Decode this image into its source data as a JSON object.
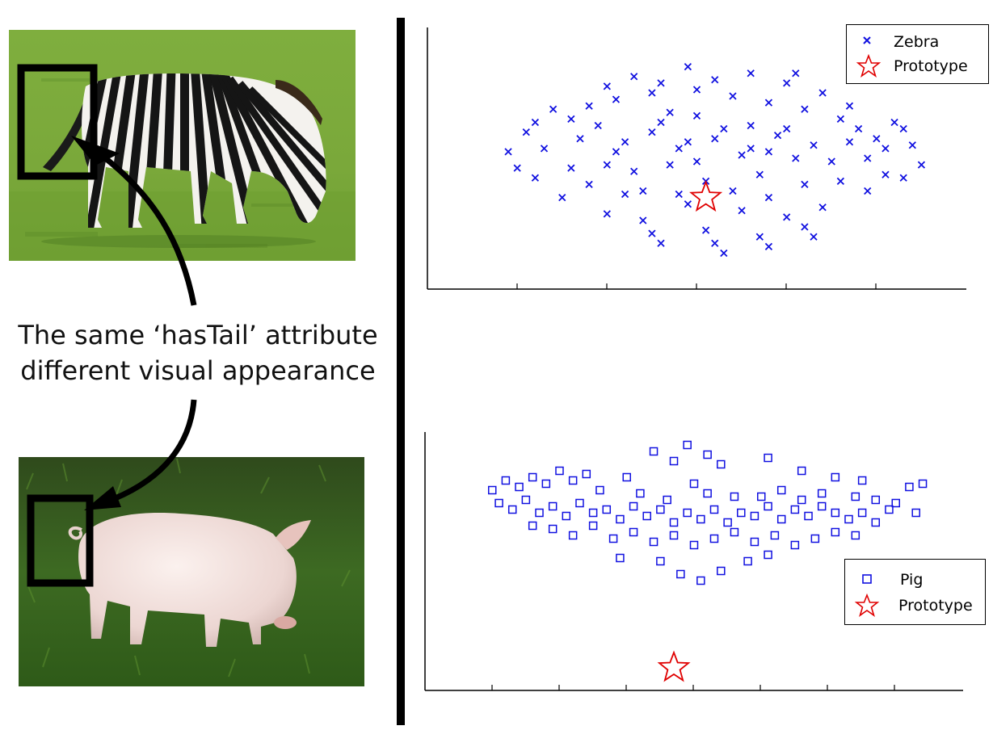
{
  "caption": {
    "line1": "The same ‘hasTail’ attribute",
    "line2": "different visual appearance"
  },
  "photos": {
    "top": "zebra-photo",
    "bottom": "pig-photo"
  },
  "chart_data": [
    {
      "type": "scatter",
      "title": "",
      "xlabel": "",
      "ylabel": "",
      "xlim": [
        -3.5,
        2.5
      ],
      "ylim": [
        -4,
        4
      ],
      "grid": false,
      "legend_position": "top-right",
      "legend": [
        "Zebra",
        "Prototype"
      ],
      "series": [
        {
          "name": "Zebra",
          "marker": "x",
          "color": "#1010e0",
          "points": [
            [
              -2.1,
              1.5
            ],
            [
              -1.9,
              1.2
            ],
            [
              -2.2,
              0.3
            ],
            [
              -1.5,
              2.2
            ],
            [
              -1.4,
              1.8
            ],
            [
              -1.2,
              2.5
            ],
            [
              -1.0,
              2.0
            ],
            [
              -0.8,
              1.4
            ],
            [
              -0.6,
              2.8
            ],
            [
              -0.5,
              2.1
            ],
            [
              -0.3,
              2.4
            ],
            [
              -0.1,
              1.9
            ],
            [
              0.1,
              2.6
            ],
            [
              0.3,
              1.7
            ],
            [
              0.5,
              2.3
            ],
            [
              0.7,
              1.5
            ],
            [
              0.9,
              2.0
            ],
            [
              1.1,
              1.2
            ],
            [
              1.3,
              0.9
            ],
            [
              1.5,
              0.6
            ],
            [
              1.7,
              1.1
            ],
            [
              1.9,
              0.4
            ],
            [
              2.0,
              -0.2
            ],
            [
              1.6,
              -0.5
            ],
            [
              1.4,
              -1.0
            ],
            [
              1.1,
              -0.7
            ],
            [
              0.9,
              -1.5
            ],
            [
              0.7,
              -2.1
            ],
            [
              0.5,
              -1.8
            ],
            [
              0.2,
              -2.4
            ],
            [
              0.0,
              -1.6
            ],
            [
              -0.2,
              -2.9
            ],
            [
              -0.4,
              -2.2
            ],
            [
              -0.6,
              -1.4
            ],
            [
              -0.9,
              -2.6
            ],
            [
              -1.1,
              -1.9
            ],
            [
              -1.3,
              -1.1
            ],
            [
              -1.5,
              -1.7
            ],
            [
              -1.7,
              -0.8
            ],
            [
              -1.9,
              -0.3
            ],
            [
              -2.4,
              0.8
            ],
            [
              -2.6,
              0.2
            ],
            [
              -2.3,
              -0.6
            ],
            [
              -2.0,
              -1.2
            ],
            [
              -1.8,
              0.6
            ],
            [
              -1.6,
              1.0
            ],
            [
              -1.4,
              0.2
            ],
            [
              -1.2,
              -0.4
            ],
            [
              -1.0,
              0.8
            ],
            [
              -0.8,
              -0.2
            ],
            [
              -0.6,
              0.5
            ],
            [
              -0.4,
              -0.7
            ],
            [
              -0.2,
              0.9
            ],
            [
              0.0,
              0.1
            ],
            [
              0.2,
              -0.5
            ],
            [
              0.4,
              0.7
            ],
            [
              0.6,
              0.0
            ],
            [
              0.8,
              0.4
            ],
            [
              1.0,
              -0.1
            ],
            [
              1.2,
              0.5
            ],
            [
              1.4,
              0.0
            ],
            [
              1.6,
              0.3
            ],
            [
              1.8,
              -0.6
            ],
            [
              -0.9,
              1.1
            ],
            [
              -0.7,
              0.3
            ],
            [
              -0.5,
              -0.1
            ],
            [
              -0.3,
              0.6
            ],
            [
              -0.1,
              -1.0
            ],
            [
              0.1,
              0.3
            ],
            [
              0.3,
              -1.2
            ],
            [
              0.5,
              0.9
            ],
            [
              0.7,
              -0.8
            ],
            [
              -1.1,
              -1.0
            ],
            [
              -1.3,
              0.5
            ],
            [
              -1.5,
              -0.2
            ],
            [
              -0.7,
              -1.1
            ],
            [
              -0.5,
              1.3
            ],
            [
              0.1,
              1.0
            ],
            [
              0.3,
              0.2
            ],
            [
              -2.3,
              1.1
            ],
            [
              -2.5,
              -0.3
            ],
            [
              -1.7,
              1.6
            ],
            [
              -0.9,
              2.3
            ],
            [
              0.6,
              2.6
            ],
            [
              1.2,
              1.6
            ],
            [
              1.8,
              0.9
            ],
            [
              0.8,
              -2.4
            ],
            [
              0.3,
              -2.7
            ],
            [
              -0.3,
              -2.6
            ],
            [
              -1.0,
              -2.3
            ]
          ]
        },
        {
          "name": "Prototype",
          "marker": "star",
          "color": "#e00000",
          "points": [
            [
              -0.4,
              -1.2
            ]
          ]
        }
      ]
    },
    {
      "type": "scatter",
      "title": "",
      "xlabel": "",
      "ylabel": "",
      "xlim": [
        -3.5,
        4.5
      ],
      "ylim": [
        -5,
        3
      ],
      "grid": false,
      "legend_position": "bottom-right",
      "legend": [
        "Pig",
        "Prototype"
      ],
      "series": [
        {
          "name": "Pig",
          "marker": "square",
          "color": "#1010e0",
          "points": [
            [
              -2.5,
              1.2
            ],
            [
              -2.3,
              1.5
            ],
            [
              -2.1,
              1.3
            ],
            [
              -1.9,
              1.6
            ],
            [
              -1.7,
              1.4
            ],
            [
              -1.5,
              1.8
            ],
            [
              -1.3,
              1.5
            ],
            [
              -1.1,
              1.7
            ],
            [
              -0.9,
              1.2
            ],
            [
              -2.4,
              0.8
            ],
            [
              -2.2,
              0.6
            ],
            [
              -2.0,
              0.9
            ],
            [
              -1.8,
              0.5
            ],
            [
              -1.6,
              0.7
            ],
            [
              -1.4,
              0.4
            ],
            [
              -1.2,
              0.8
            ],
            [
              -1.0,
              0.5
            ],
            [
              -0.8,
              0.6
            ],
            [
              -0.6,
              0.3
            ],
            [
              -0.4,
              0.7
            ],
            [
              -0.2,
              0.4
            ],
            [
              0.0,
              0.6
            ],
            [
              0.2,
              0.2
            ],
            [
              0.4,
              0.5
            ],
            [
              0.6,
              0.3
            ],
            [
              0.8,
              0.6
            ],
            [
              1.0,
              0.2
            ],
            [
              1.2,
              0.5
            ],
            [
              1.4,
              0.4
            ],
            [
              1.6,
              0.7
            ],
            [
              1.8,
              0.3
            ],
            [
              2.0,
              0.6
            ],
            [
              2.2,
              0.4
            ],
            [
              2.4,
              0.7
            ],
            [
              2.6,
              0.5
            ],
            [
              2.8,
              0.3
            ],
            [
              3.0,
              0.5
            ],
            [
              3.2,
              0.2
            ],
            [
              3.4,
              0.6
            ],
            [
              -1.9,
              0.1
            ],
            [
              -1.6,
              0.0
            ],
            [
              -1.3,
              -0.2
            ],
            [
              -1.0,
              0.1
            ],
            [
              -0.7,
              -0.3
            ],
            [
              -0.4,
              -0.1
            ],
            [
              -0.1,
              -0.4
            ],
            [
              0.2,
              -0.2
            ],
            [
              0.5,
              -0.5
            ],
            [
              0.8,
              -0.3
            ],
            [
              1.1,
              -0.1
            ],
            [
              1.4,
              -0.4
            ],
            [
              1.7,
              -0.2
            ],
            [
              2.0,
              -0.5
            ],
            [
              2.3,
              -0.3
            ],
            [
              2.6,
              -0.1
            ],
            [
              2.9,
              -0.2
            ],
            [
              0.3,
              -1.4
            ],
            [
              0.6,
              -1.6
            ],
            [
              0.9,
              -1.3
            ],
            [
              1.3,
              -1.0
            ],
            [
              1.6,
              -0.8
            ],
            [
              -0.6,
              -0.9
            ],
            [
              0.0,
              -1.0
            ],
            [
              0.4,
              2.6
            ],
            [
              0.7,
              2.3
            ],
            [
              0.9,
              2.0
            ],
            [
              1.6,
              2.2
            ],
            [
              2.1,
              1.8
            ],
            [
              2.6,
              1.6
            ],
            [
              3.0,
              1.5
            ],
            [
              3.7,
              1.3
            ],
            [
              3.9,
              1.4
            ],
            [
              -0.1,
              2.4
            ],
            [
              0.2,
              2.1
            ],
            [
              -0.5,
              1.6
            ],
            [
              0.5,
              1.4
            ],
            [
              1.1,
              1.0
            ],
            [
              1.8,
              1.2
            ],
            [
              2.4,
              1.1
            ],
            [
              2.9,
              1.0
            ],
            [
              3.5,
              0.8
            ],
            [
              -0.3,
              1.1
            ],
            [
              0.1,
              0.9
            ],
            [
              0.7,
              1.1
            ],
            [
              1.5,
              1.0
            ],
            [
              2.1,
              0.9
            ],
            [
              3.2,
              0.9
            ],
            [
              3.8,
              0.5
            ]
          ]
        },
        {
          "name": "Prototype",
          "marker": "star",
          "color": "#e00000",
          "points": [
            [
              0.2,
              -4.3
            ]
          ]
        }
      ]
    }
  ]
}
